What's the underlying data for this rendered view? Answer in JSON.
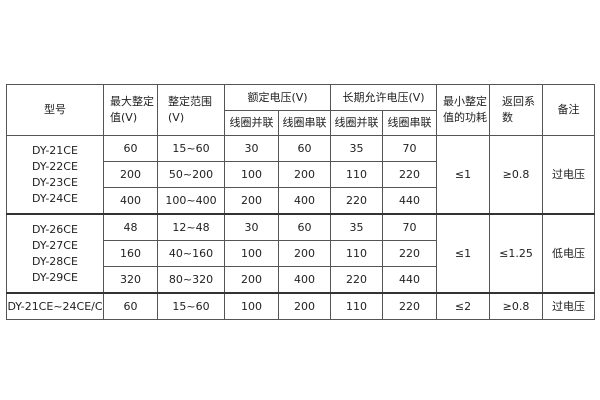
{
  "header": {
    "model": "型号",
    "max_setting": "最大整定值(V)",
    "setting_range": "整定范围(V)",
    "rated_voltage": "额定电压(V)",
    "long_term_voltage": "长期允许电压(V)",
    "coil_parallel": "线圈并联",
    "coil_series": "线圈串联",
    "min_power": "最小整定值的功耗",
    "return_coef": "返回系数",
    "remark": "备注"
  },
  "groups": [
    {
      "models": [
        "DY-21CE",
        "DY-22CE",
        "DY-23CE",
        "DY-24CE"
      ],
      "rows": [
        [
          "60",
          "15~60",
          "30",
          "60",
          "35",
          "70"
        ],
        [
          "200",
          "50~200",
          "100",
          "200",
          "110",
          "220"
        ],
        [
          "400",
          "100~400",
          "200",
          "400",
          "220",
          "440"
        ]
      ],
      "power": "≤1",
      "coef": "≥0.8",
      "remark": "过电压"
    },
    {
      "models": [
        "DY-26CE",
        "DY-27CE",
        "DY-28CE",
        "DY-29CE"
      ],
      "rows": [
        [
          "48",
          "12~48",
          "30",
          "60",
          "35",
          "70"
        ],
        [
          "160",
          "40~160",
          "100",
          "200",
          "110",
          "220"
        ],
        [
          "320",
          "80~320",
          "200",
          "400",
          "220",
          "440"
        ]
      ],
      "power": "≤1",
      "coef": "≤1.25",
      "remark": "低电压"
    },
    {
      "models": [
        "DY-21CE~24CE/C"
      ],
      "rows": [
        [
          "60",
          "15~60",
          "100",
          "200",
          "110",
          "220"
        ]
      ],
      "power": "≤2",
      "coef": "≥0.8",
      "remark": "过电压"
    }
  ]
}
